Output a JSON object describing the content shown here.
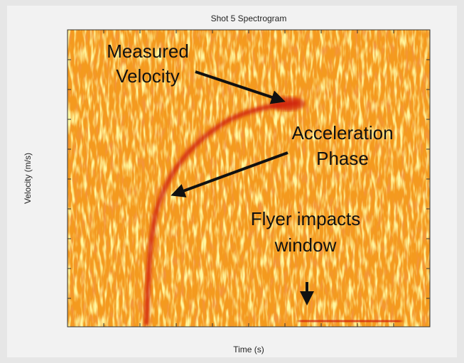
{
  "chart_data": {
    "type": "spectrogram",
    "title": "Shot 5 Spectrogram",
    "xlabel": "Time (s)",
    "ylabel": "Velocity (m/s)",
    "annotations": [
      {
        "lines": [
          "Measured",
          "Velocity"
        ]
      },
      {
        "lines": [
          "Acceleration",
          "Phase"
        ]
      },
      {
        "lines": [
          "Flyer impacts",
          "window"
        ]
      }
    ]
  }
}
